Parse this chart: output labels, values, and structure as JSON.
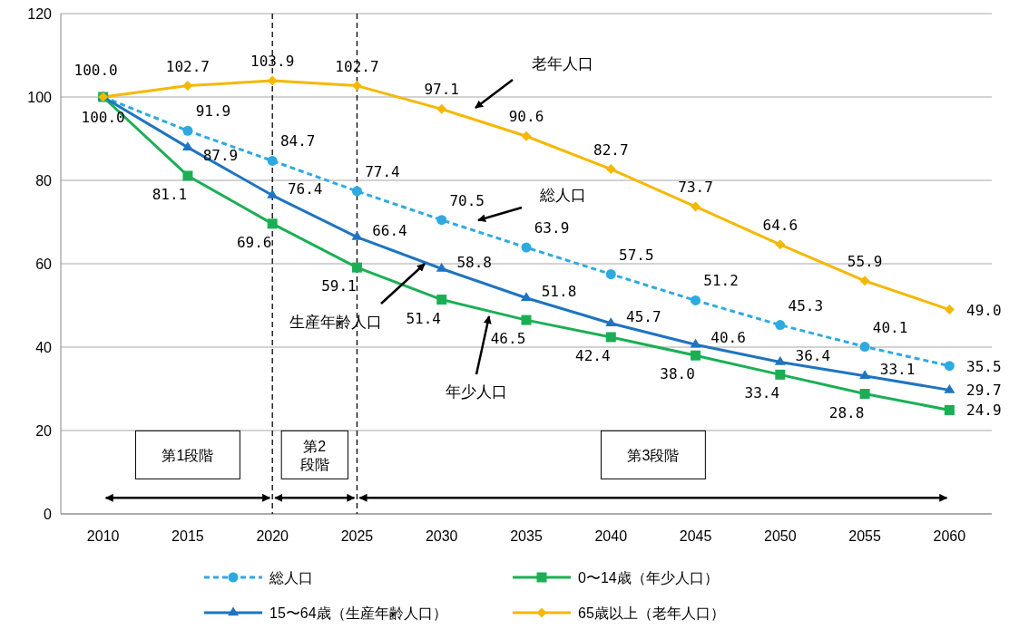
{
  "chart_data": {
    "type": "line",
    "x": [
      2010,
      2015,
      2020,
      2025,
      2030,
      2035,
      2040,
      2045,
      2050,
      2055,
      2060
    ],
    "xlim": [
      2007.5,
      2062.5
    ],
    "xticks": [
      2010,
      2015,
      2020,
      2025,
      2030,
      2035,
      2040,
      2045,
      2050,
      2055,
      2060
    ],
    "ylim": [
      0,
      120
    ],
    "yticks": [
      0,
      20,
      40,
      60,
      80,
      100,
      120
    ],
    "grid": "y",
    "legend": "bottom",
    "series": [
      {
        "name": "総人口",
        "color": "#2eaae1",
        "marker": "circle",
        "line_style": "dashed",
        "values": [
          100.0,
          91.9,
          84.7,
          77.4,
          70.5,
          63.9,
          57.5,
          51.2,
          45.3,
          40.1,
          35.5
        ],
        "value_labels": [
          null,
          "91.9",
          "84.7",
          "77.4",
          "70.5",
          "63.9",
          "57.5",
          "51.2",
          "45.3",
          "40.1",
          "35.5"
        ]
      },
      {
        "name": "0〜14歳（年少人口）",
        "color": "#1aaf54",
        "marker": "square",
        "line_style": "solid",
        "values": [
          100.0,
          81.1,
          69.6,
          59.1,
          51.4,
          46.5,
          42.4,
          38.0,
          33.4,
          28.8,
          24.9
        ],
        "value_labels": [
          "100.0",
          "81.1",
          "69.6",
          "59.1",
          "51.4",
          "46.5",
          "42.4",
          "38.0",
          "33.4",
          "28.8",
          "24.9"
        ]
      },
      {
        "name": "15〜64歳（生産年齢人口）",
        "color": "#1f74c0",
        "marker": "triangle",
        "line_style": "solid",
        "values": [
          100.0,
          87.9,
          76.4,
          66.4,
          58.8,
          51.8,
          45.7,
          40.6,
          36.4,
          33.1,
          29.7
        ],
        "value_labels": [
          null,
          "87.9",
          "76.4",
          "66.4",
          "58.8",
          "51.8",
          "45.7",
          "40.6",
          "36.4",
          "33.1",
          "29.7"
        ]
      },
      {
        "name": "65歳以上（老年人口）",
        "color": "#f5b800",
        "marker": "diamond",
        "line_style": "solid",
        "values": [
          100.0,
          102.7,
          103.9,
          102.7,
          97.1,
          90.6,
          82.7,
          73.7,
          64.6,
          55.9,
          49.0
        ],
        "value_labels": [
          "100.0",
          "102.7",
          "103.9",
          "102.7",
          "97.1",
          "90.6",
          "82.7",
          "73.7",
          "64.6",
          "55.9",
          "49.0"
        ]
      }
    ],
    "ref_lines": [
      {
        "axis": "x",
        "value": 2020,
        "line_style": "dashed"
      },
      {
        "axis": "x",
        "value": 2025,
        "line_style": "dashed"
      }
    ],
    "annotations": [
      "老年人口",
      "総人口",
      {
        "text": "生産年齢人口",
        "x": 2029,
        "y": 60
      },
      "年少人口",
      "第1段階",
      "第2段階",
      "第3段階"
    ]
  }
}
